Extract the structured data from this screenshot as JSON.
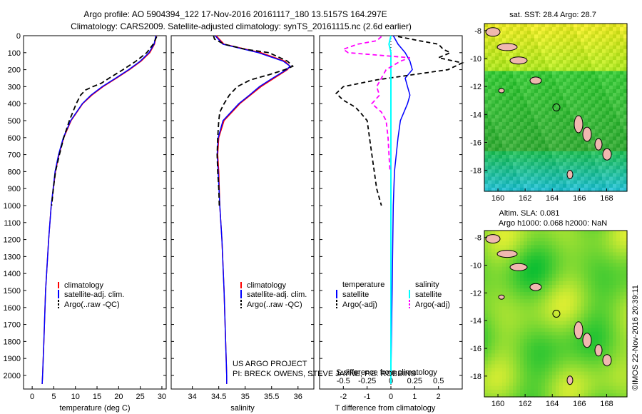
{
  "header": {
    "line1": "Argo profile: AO 5904394_122 17-Nov-2016 20161117_180 13.5157S 164.297E",
    "line2": "Climatology: CARS2009. Satellite-adjusted climatology: synTS_20161115.nc (2.6d earlier)"
  },
  "footer": {
    "project": "US ARGO PROJECT",
    "pi": "PI: BRECK OWENS, STEVE JAYNE, P.E. ROBBINS"
  },
  "credit": "©IMOS 22-Nov-2016 20:39:11",
  "colors": {
    "climatology": "#ff0000",
    "satellite": "#0000ff",
    "argo": "#000000",
    "sal_satellite": "#00ffff",
    "sal_argo": "#ff00ff",
    "land": "#f0b8b0"
  },
  "chart_data": [
    {
      "type": "line",
      "xlabel": "temperature (deg C)",
      "ylabel": "",
      "xlim": [
        -2,
        31
      ],
      "ylim": [
        2080,
        0
      ],
      "xticks": [
        "0",
        "5",
        "10",
        "15",
        "20",
        "25",
        "30"
      ],
      "yticks": [
        "0",
        "100",
        "200",
        "300",
        "400",
        "500",
        "600",
        "700",
        "800",
        "900",
        "1000",
        "1100",
        "1200",
        "1300",
        "1400",
        "1500",
        "1600",
        "1700",
        "1800",
        "1900",
        "2000"
      ],
      "legend": [
        "climatology",
        "satellite-adj. clim.",
        "Argo(..raw -QC)"
      ],
      "series": [
        {
          "name": "climatology",
          "depth": [
            0,
            50,
            100,
            150,
            200,
            250,
            300,
            350,
            400,
            500,
            600,
            700,
            800,
            1000,
            1200,
            1500,
            1800,
            2000,
            2050
          ],
          "values": [
            28.7,
            28.3,
            27.2,
            25.2,
            22.5,
            19.5,
            16.4,
            13.8,
            11.7,
            9.0,
            7.3,
            6.2,
            5.4,
            4.4,
            3.8,
            3.1,
            2.7,
            2.4,
            2.3
          ]
        },
        {
          "name": "satellite-adj. clim.",
          "depth": [
            0,
            50,
            100,
            150,
            200,
            250,
            300,
            350,
            400,
            500,
            600,
            700,
            800,
            1000,
            1200,
            1500,
            1800,
            2000,
            2050
          ],
          "values": [
            28.6,
            28.2,
            27.0,
            25.0,
            22.3,
            19.3,
            16.2,
            13.6,
            11.6,
            8.9,
            7.2,
            6.1,
            5.3,
            4.4,
            3.8,
            3.1,
            2.7,
            2.4,
            2.3
          ]
        },
        {
          "name": "Argo(..raw -QC)",
          "depth": [
            5,
            50,
            100,
            150,
            200,
            250,
            280,
            300,
            320,
            350,
            400,
            450,
            500,
            600,
            700,
            800,
            900,
            1000
          ],
          "values": [
            28.8,
            28.0,
            26.5,
            24.0,
            21.0,
            17.8,
            16.0,
            14.0,
            12.3,
            11.2,
            10.2,
            9.4,
            8.6,
            7.3,
            6.3,
            5.4,
            4.9,
            4.5
          ]
        }
      ]
    },
    {
      "type": "line",
      "xlabel": "salinity",
      "xlim": [
        33.6,
        36.3
      ],
      "ylim": [
        2080,
        0
      ],
      "xticks": [
        "34",
        "34.5",
        "35",
        "35.5",
        "36"
      ],
      "legend": [
        "climatology",
        "satellite-adj. clim.",
        "Argo(..raw -QC)"
      ],
      "series": [
        {
          "name": "climatology",
          "depth": [
            0,
            50,
            100,
            150,
            180,
            200,
            250,
            300,
            350,
            400,
            500,
            600,
            700,
            800,
            1000,
            1200,
            1500,
            1800,
            2000,
            2050
          ],
          "values": [
            34.45,
            34.6,
            35.3,
            35.75,
            35.85,
            35.8,
            35.55,
            35.3,
            35.1,
            34.9,
            34.6,
            34.5,
            34.48,
            34.5,
            34.52,
            34.56,
            34.6,
            34.63,
            34.65,
            34.65
          ]
        },
        {
          "name": "satellite-adj. clim.",
          "depth": [
            0,
            50,
            100,
            150,
            180,
            200,
            250,
            300,
            350,
            400,
            500,
            600,
            700,
            800,
            1000,
            1200,
            1500,
            1800,
            2000,
            2050
          ],
          "values": [
            34.43,
            34.58,
            35.25,
            35.72,
            35.85,
            35.78,
            35.52,
            35.27,
            35.08,
            34.88,
            34.58,
            34.49,
            34.47,
            34.49,
            34.52,
            34.56,
            34.6,
            34.63,
            34.65,
            34.65
          ]
        },
        {
          "name": "Argo(..raw -QC)",
          "depth": [
            0,
            20,
            50,
            80,
            100,
            150,
            180,
            200,
            230,
            260,
            300,
            350,
            400,
            450,
            500,
            600,
            700,
            800,
            900,
            1000
          ],
          "values": [
            34.4,
            34.42,
            34.6,
            35.0,
            35.45,
            35.8,
            35.9,
            35.75,
            35.45,
            35.1,
            34.85,
            34.7,
            34.6,
            34.52,
            34.5,
            34.48,
            34.47,
            34.48,
            34.5,
            34.51
          ]
        }
      ]
    },
    {
      "type": "line",
      "xlabel": "T difference from climatology",
      "xlabel_top": "S difference from climatology",
      "xlim": [
        -3,
        3
      ],
      "ylim": [
        2080,
        0
      ],
      "xticks": [
        "-2",
        "-1",
        "0",
        "1",
        "2"
      ],
      "xticks_top": [
        "-0.5",
        "-0.25",
        "0",
        "0.25",
        "0.5"
      ],
      "legend": [
        "temperature",
        "satellite",
        "Argo(-adj)",
        "salinity",
        "satellite",
        "Argo(-adj)"
      ],
      "series": [
        {
          "name": "temperature satellite",
          "depth": [
            0,
            50,
            100,
            150,
            200,
            250,
            300,
            350,
            400,
            500,
            600,
            800,
            1000,
            1500,
            2000,
            2050
          ],
          "values": [
            0.1,
            0.3,
            0.6,
            0.8,
            0.9,
            0.6,
            0.7,
            0.8,
            0.7,
            0.4,
            0.3,
            0.15,
            0.1,
            0.05,
            0.0,
            0.0
          ]
        },
        {
          "name": "temperature Argo(-adj)",
          "depth": [
            5,
            30,
            50,
            80,
            100,
            130,
            160,
            200,
            260,
            300,
            340,
            380,
            420,
            450,
            500,
            600,
            700,
            800,
            900,
            1000
          ],
          "values": [
            0.3,
            1.2,
            2.0,
            2.2,
            2.5,
            2.0,
            3.0,
            2.4,
            -0.6,
            -2.0,
            -2.3,
            -2.0,
            -1.5,
            -1.3,
            -1.0,
            -0.9,
            -0.8,
            -0.7,
            -0.6,
            -0.4
          ]
        },
        {
          "name": "salinity satellite",
          "depth": [
            0,
            50,
            100,
            200,
            300,
            500,
            1000,
            2000,
            2050
          ],
          "values": [
            0.0,
            -0.02,
            0.0,
            0.0,
            0.0,
            0.0,
            0.0,
            0.0,
            0.0
          ]
        },
        {
          "name": "salinity Argo(-adj)",
          "depth": [
            5,
            30,
            50,
            80,
            100,
            130,
            150,
            200,
            250,
            300,
            350,
            400,
            450,
            500,
            600,
            700,
            800
          ],
          "values": [
            -0.1,
            -0.15,
            -0.35,
            -0.5,
            -0.45,
            0.2,
            0.1,
            -0.05,
            -0.1,
            -0.15,
            -0.12,
            -0.2,
            -0.1,
            -0.05,
            -0.03,
            -0.02,
            -0.01
          ]
        }
      ]
    },
    {
      "type": "heatmap",
      "title": "sat. SST: 28.4  Argo: 28.7",
      "xticks": [
        "160",
        "162",
        "164",
        "166",
        "168"
      ],
      "yticks": [
        "-8",
        "-10",
        "-12",
        "-14",
        "-16",
        "-18"
      ],
      "xlim": [
        159,
        169.5
      ],
      "ylim": [
        -19.5,
        -7.5
      ],
      "marker": {
        "lon": 164.3,
        "lat": -13.5
      }
    },
    {
      "type": "heatmap",
      "title": "Altim. SLA: 0.081",
      "subtitle": "Argo h1000: 0.068 h2000: NaN",
      "xticks": [
        "160",
        "162",
        "164",
        "166",
        "168"
      ],
      "yticks": [
        "-8",
        "-10",
        "-12",
        "-14",
        "-16",
        "-18"
      ],
      "xlim": [
        159,
        169.5
      ],
      "ylim": [
        -19.5,
        -7.5
      ],
      "marker": {
        "lon": 164.3,
        "lat": -13.5
      }
    }
  ]
}
